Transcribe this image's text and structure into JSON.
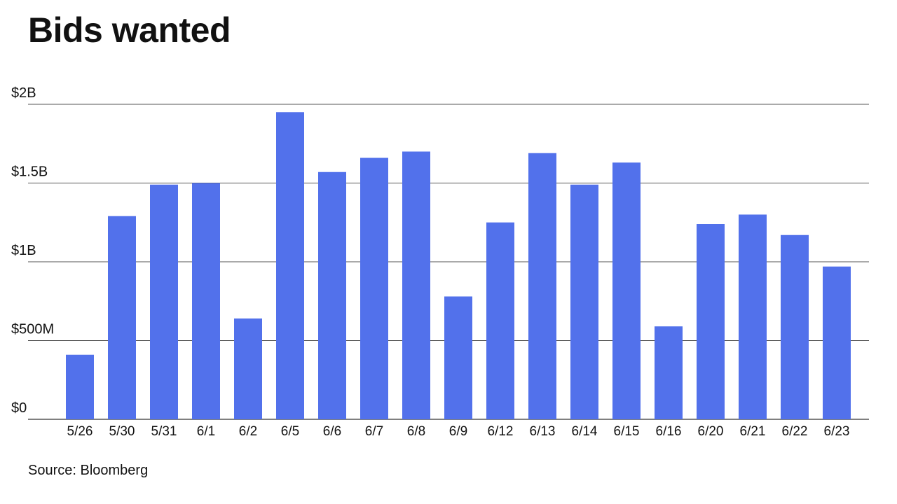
{
  "title": "Bids wanted",
  "source": "Source: Bloomberg",
  "colors": {
    "bar": "#5271eb",
    "grid": "#555555",
    "text": "#111111"
  },
  "chart_data": {
    "type": "bar",
    "title": "Bids wanted",
    "xlabel": "",
    "ylabel": "",
    "grid": true,
    "legend": "none",
    "ylim": [
      0,
      2000000000
    ],
    "ytick_values": [
      0,
      500000000,
      1000000000,
      1500000000,
      2000000000
    ],
    "ytick_labels": [
      "$0",
      "$500M",
      "$1B",
      "$1.5B",
      "$2B"
    ],
    "categories": [
      "5/26",
      "5/30",
      "5/31",
      "6/1",
      "6/2",
      "6/5",
      "6/6",
      "6/7",
      "6/8",
      "6/9",
      "6/12",
      "6/13",
      "6/14",
      "6/15",
      "6/16",
      "6/20",
      "6/21",
      "6/22",
      "6/23"
    ],
    "values": [
      410000000,
      1290000000,
      1490000000,
      1500000000,
      640000000,
      1950000000,
      1570000000,
      1660000000,
      1700000000,
      780000000,
      1250000000,
      1690000000,
      1490000000,
      1630000000,
      590000000,
      1240000000,
      1300000000,
      1170000000,
      970000000
    ]
  }
}
